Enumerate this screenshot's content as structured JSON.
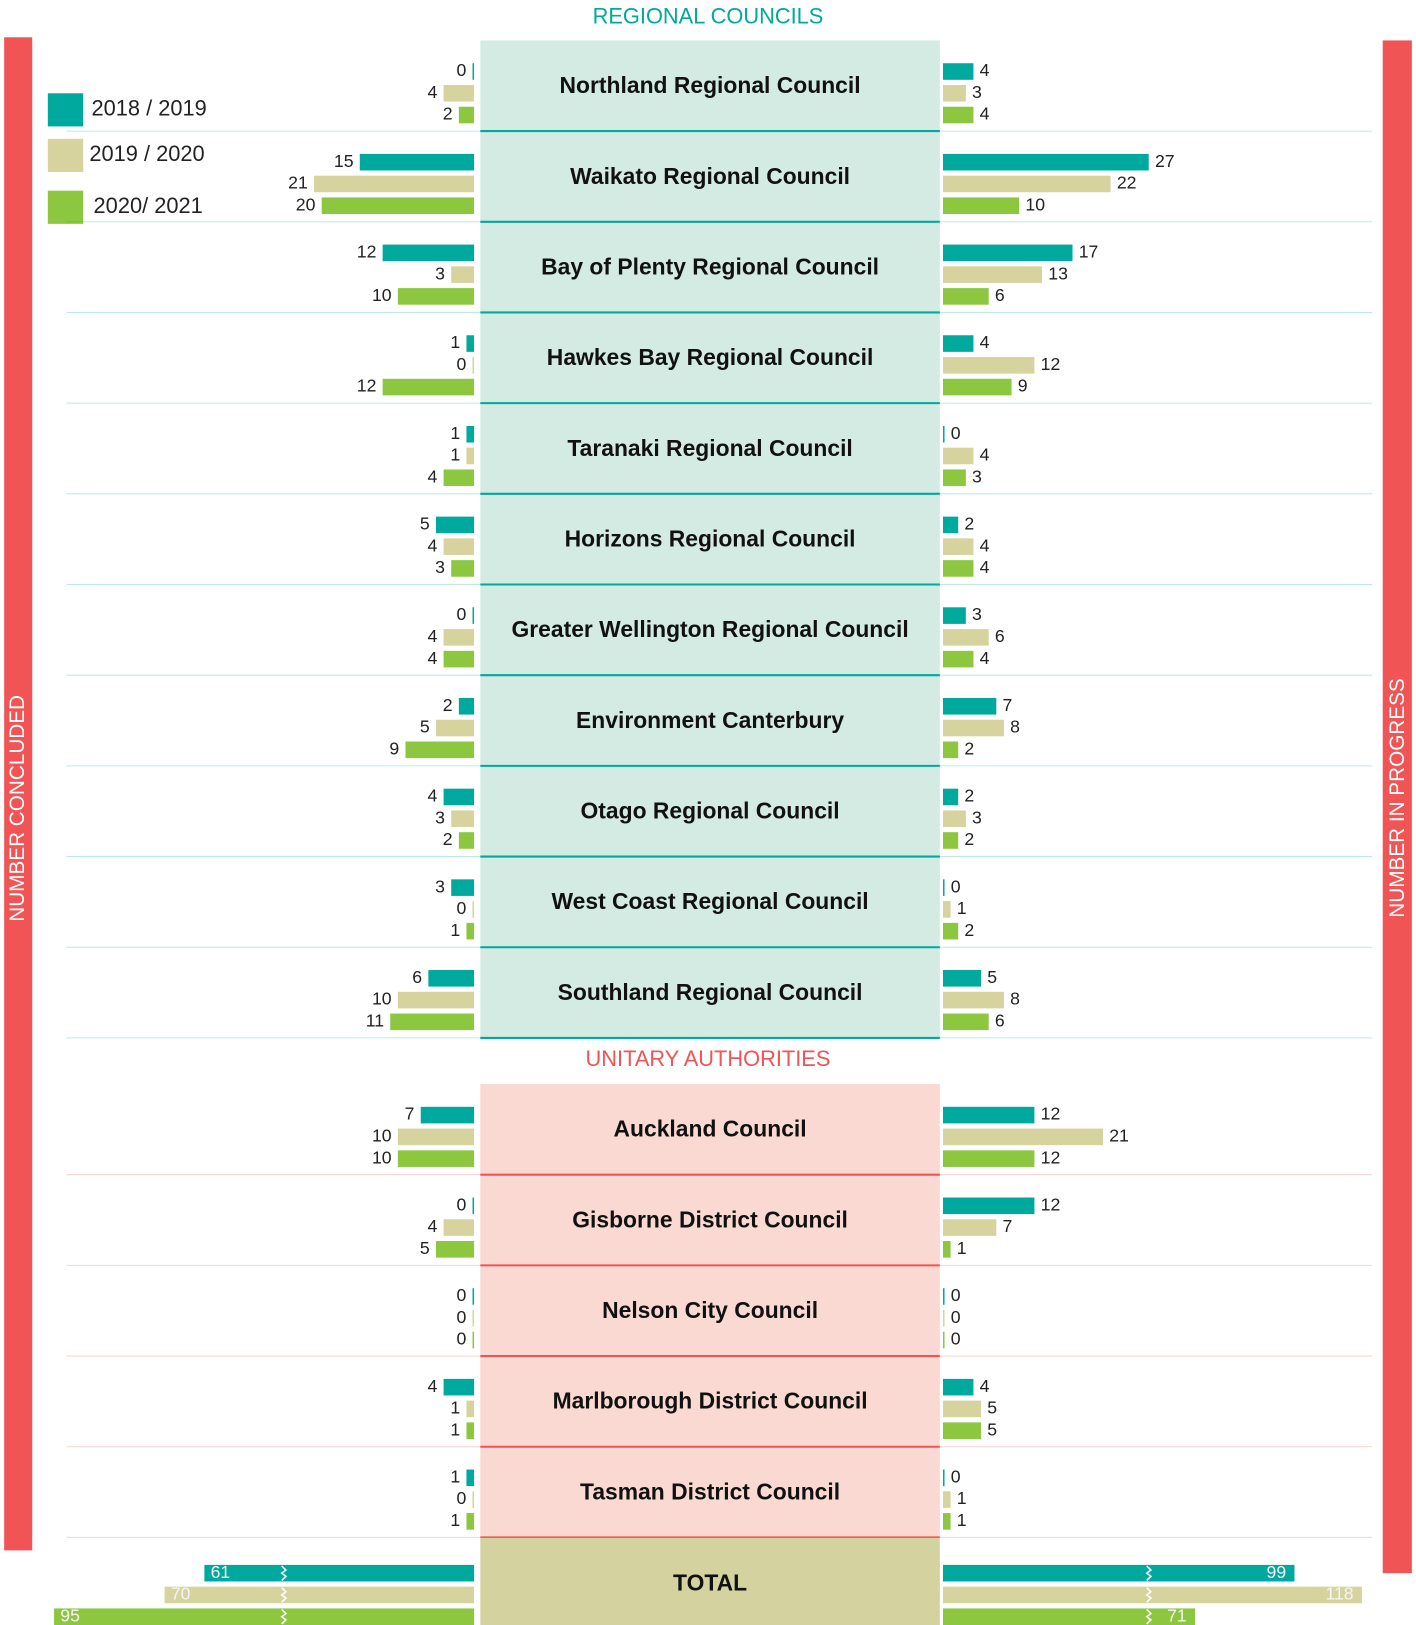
{
  "chart_data": {
    "type": "butterfly",
    "left_axis_label": "NUMBER CONCLUDED",
    "right_axis_label": "NUMBER IN PROGRESS",
    "series": [
      {
        "name": "2018 / 2019",
        "color": "#00a99d"
      },
      {
        "name": "2019 / 2020",
        "color": "#d6d39e"
      },
      {
        "name": "2020/ 2021",
        "color": "#8dc63f"
      }
    ],
    "groups": [
      {
        "title": "REGIONAL COUNCILS",
        "title_color": "#00a99d",
        "box_color": "#d4ebe4",
        "line_color": "#00a99d",
        "categories": [
          "Northland Regional Council",
          "Waikato Regional Council",
          "Bay of Plenty Regional Council",
          "Hawkes Bay Regional Council",
          "Taranaki Regional Council",
          "Horizons Regional Council",
          "Greater Wellington Regional Council",
          "Environment Canterbury",
          "Otago Regional Council",
          "West Coast Regional Council",
          "Southland Regional Council"
        ],
        "concluded": [
          [
            0,
            15,
            12,
            1,
            1,
            5,
            0,
            2,
            4,
            3,
            6
          ],
          [
            4,
            21,
            3,
            0,
            1,
            4,
            4,
            5,
            3,
            0,
            10
          ],
          [
            2,
            20,
            10,
            12,
            4,
            3,
            4,
            9,
            2,
            1,
            11
          ]
        ],
        "in_progress": [
          [
            4,
            27,
            17,
            4,
            0,
            2,
            3,
            7,
            2,
            0,
            5
          ],
          [
            3,
            22,
            13,
            12,
            4,
            4,
            6,
            8,
            3,
            1,
            8
          ],
          [
            4,
            10,
            6,
            9,
            3,
            4,
            4,
            2,
            2,
            2,
            6
          ]
        ]
      },
      {
        "title": "UNITARY AUTHORITIES",
        "title_color": "#f05454",
        "box_color": "#f9d9d2",
        "line_color": "#f05454",
        "categories": [
          "Auckland Council",
          "Gisborne District Council",
          "Nelson City Council",
          "Marlborough District Council",
          "Tasman District Council"
        ],
        "concluded": [
          [
            7,
            0,
            0,
            4,
            1
          ],
          [
            10,
            4,
            0,
            1,
            0
          ],
          [
            10,
            5,
            0,
            1,
            1
          ]
        ],
        "in_progress": [
          [
            12,
            12,
            0,
            4,
            0
          ],
          [
            21,
            7,
            0,
            5,
            1
          ],
          [
            12,
            1,
            0,
            5,
            1
          ]
        ]
      }
    ],
    "total": {
      "label": "TOTAL",
      "box_color": "#d4d39f",
      "concluded": [
        61,
        70,
        95
      ],
      "in_progress": [
        99,
        118,
        71
      ]
    }
  }
}
